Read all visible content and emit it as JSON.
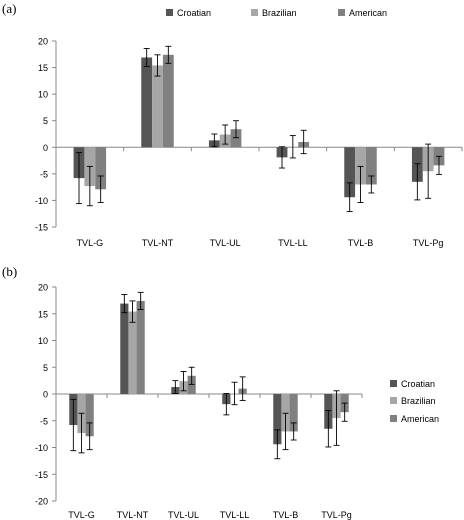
{
  "panel_labels": [
    "(a)",
    "(b)"
  ],
  "chart_data": [
    {
      "type": "bar",
      "categories": [
        "TVL-G",
        "TVL-NT",
        "TVL-UL",
        "TVL-LL",
        "TVL-B",
        "TVL-Pg"
      ],
      "series": [
        {
          "name": "Croatian",
          "color": "#555555",
          "values": [
            -5.8,
            16.9,
            1.3,
            -1.9,
            -9.4,
            -6.5
          ],
          "error": [
            4.8,
            1.7,
            1.2,
            2.0,
            2.7,
            3.4
          ]
        },
        {
          "name": "Brazilian",
          "color": "#a6a6a6",
          "values": [
            -7.3,
            15.4,
            2.4,
            0.1,
            -7.0,
            -4.5
          ],
          "error": [
            3.7,
            2.0,
            1.8,
            2.1,
            3.4,
            5.1
          ]
        },
        {
          "name": "American",
          "color": "#808080",
          "values": [
            -7.9,
            17.4,
            3.4,
            1.0,
            -7.0,
            -3.4
          ],
          "error": [
            2.5,
            1.6,
            1.6,
            2.2,
            1.6,
            1.7
          ]
        }
      ],
      "ylim": [
        -15,
        20
      ],
      "yticks": [
        -15,
        -10,
        -5,
        0,
        5,
        10,
        15,
        20
      ],
      "legend_position": "top",
      "grid": false
    },
    {
      "type": "bar",
      "categories": [
        "TVL-G",
        "TVL-NT",
        "TVL-UL",
        "TVL-LL",
        "TVL-B",
        "TVL-Pg"
      ],
      "series": [
        {
          "name": "Croatian",
          "color": "#555555",
          "values": [
            -5.8,
            16.9,
            1.3,
            -1.9,
            -9.4,
            -6.5
          ],
          "error": [
            4.8,
            1.7,
            1.2,
            2.0,
            2.7,
            3.4
          ]
        },
        {
          "name": "Brazilian",
          "color": "#a6a6a6",
          "values": [
            -7.3,
            15.4,
            2.4,
            0.1,
            -7.0,
            -4.5
          ],
          "error": [
            3.7,
            2.0,
            1.8,
            2.1,
            3.4,
            5.1
          ]
        },
        {
          "name": "American",
          "color": "#808080",
          "values": [
            -7.9,
            17.4,
            3.4,
            1.0,
            -7.0,
            -3.4
          ],
          "error": [
            2.5,
            1.6,
            1.6,
            2.2,
            1.6,
            1.7
          ]
        }
      ],
      "ylim": [
        -20,
        20
      ],
      "yticks": [
        -20,
        -15,
        -10,
        -5,
        0,
        5,
        10,
        15,
        20
      ],
      "legend_position": "right",
      "grid": false
    }
  ]
}
